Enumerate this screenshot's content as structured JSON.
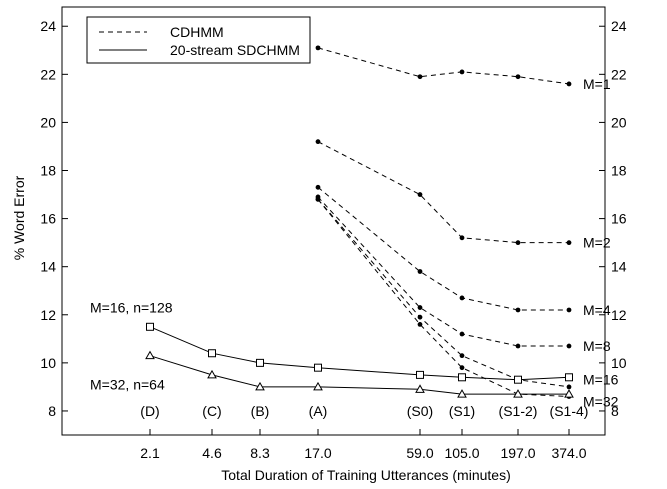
{
  "chart_data": {
    "type": "line",
    "xlabel": "Total Duration of Training Utterances (minutes)",
    "ylabel": "% Word Error",
    "ylim": [
      7,
      24.8
    ],
    "yticks": [
      8,
      10,
      12,
      14,
      16,
      18,
      20,
      22,
      24
    ],
    "categories": [
      "2.1",
      "4.6",
      "8.3",
      "17.0",
      "59.0",
      "105.0",
      "197.0",
      "374.0"
    ],
    "category_codes": [
      "(D)",
      "(C)",
      "(B)",
      "(A)",
      "(S0)",
      "(S1)",
      "(S1-2)",
      "(S1-4)"
    ],
    "legend": {
      "position": "top-left",
      "entries": [
        {
          "label": "CDHMM",
          "style": "dashed"
        },
        {
          "label": "20-stream SDCHMM",
          "style": "solid"
        }
      ]
    },
    "grid": false,
    "series": [
      {
        "name": "",
        "label": "M=1",
        "style": "dashed",
        "marker": "dot",
        "values": [
          null,
          null,
          null,
          23.1,
          21.9,
          22.1,
          21.9,
          21.6
        ]
      },
      {
        "name": "",
        "label": "M=2",
        "style": "dashed",
        "marker": "dot",
        "values": [
          null,
          null,
          null,
          19.2,
          17.0,
          15.2,
          15.0,
          15.0
        ]
      },
      {
        "name": "",
        "label": "M=4",
        "style": "dashed",
        "marker": "dot",
        "values": [
          null,
          null,
          null,
          17.3,
          13.8,
          12.7,
          12.2,
          12.2
        ]
      },
      {
        "name": "",
        "label": "M=8",
        "style": "dashed",
        "marker": "dot",
        "values": [
          null,
          null,
          null,
          16.9,
          12.3,
          11.2,
          10.7,
          10.7
        ]
      },
      {
        "name": "",
        "label": "M=16",
        "style": "dashed",
        "marker": "dot",
        "values": [
          null,
          null,
          null,
          16.8,
          11.9,
          10.3,
          9.3,
          9.0
        ]
      },
      {
        "name": "",
        "label": "M=32",
        "style": "dashed",
        "marker": "dot",
        "values": [
          null,
          null,
          null,
          16.8,
          11.6,
          9.8,
          8.7,
          8.6
        ]
      },
      {
        "name": "",
        "label": "M=16, n=128",
        "style": "solid",
        "marker": "square",
        "values": [
          11.5,
          10.4,
          10.0,
          9.8,
          9.5,
          9.4,
          9.3,
          9.4
        ]
      },
      {
        "name": "",
        "label": "M=32, n=64",
        "style": "solid",
        "marker": "triangle",
        "values": [
          10.3,
          9.5,
          9.0,
          9.0,
          8.9,
          8.7,
          8.7,
          8.7
        ]
      }
    ]
  }
}
